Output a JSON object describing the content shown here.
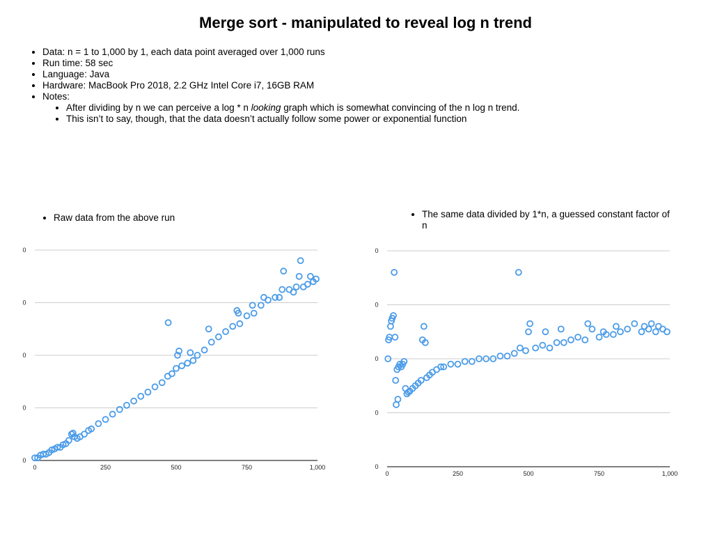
{
  "slide": {
    "title": "Merge sort - manipulated to reveal log n trend",
    "bullets": [
      "Data: n = 1 to 1,000 by 1, each data point averaged over 1,000 runs",
      "Run time: 58 sec",
      "Language: Java",
      "Hardware: MacBook Pro 2018, 2.2 GHz Intel Core i7, 16GB RAM",
      "Notes:"
    ],
    "sub_bullets": [
      {
        "before": "After dividing by n we can perceive a log * n ",
        "em": "looking",
        "after": " graph which is somewhat convincing of the n log n trend."
      },
      {
        "before": "This isn’t to say, though, that the data doesn’t actually follow some power or exponential function",
        "em": "",
        "after": ""
      }
    ],
    "left_note": "Raw data from the above run",
    "right_note": "The same data divided by 1*n, a guessed constant factor of n"
  },
  "colors": {
    "point": "#4a9be8",
    "grid": "#cccccc",
    "axis": "#333333"
  },
  "chart_data": [
    {
      "type": "scatter",
      "title": "",
      "xlabel": "",
      "ylabel": "",
      "xlim": [
        0,
        1000
      ],
      "ylim": [
        0,
        4
      ],
      "x_ticks": [
        "0",
        "250",
        "500",
        "750",
        "1,000"
      ],
      "y_ticks": [
        "0",
        "0",
        "0",
        "0",
        "0"
      ],
      "grid": true,
      "trend": "approximately linear (n log n), rising from 0 to about 3.5 at n = 1,000",
      "points": [
        [
          0,
          0.05
        ],
        [
          10,
          0.05
        ],
        [
          20,
          0.1
        ],
        [
          30,
          0.12
        ],
        [
          40,
          0.12
        ],
        [
          50,
          0.15
        ],
        [
          60,
          0.2
        ],
        [
          70,
          0.22
        ],
        [
          80,
          0.25
        ],
        [
          90,
          0.25
        ],
        [
          100,
          0.3
        ],
        [
          110,
          0.32
        ],
        [
          120,
          0.38
        ],
        [
          130,
          0.5
        ],
        [
          135,
          0.52
        ],
        [
          140,
          0.45
        ],
        [
          150,
          0.42
        ],
        [
          160,
          0.45
        ],
        [
          175,
          0.5
        ],
        [
          190,
          0.57
        ],
        [
          200,
          0.6
        ],
        [
          225,
          0.7
        ],
        [
          250,
          0.78
        ],
        [
          275,
          0.88
        ],
        [
          300,
          0.97
        ],
        [
          325,
          1.05
        ],
        [
          350,
          1.13
        ],
        [
          375,
          1.22
        ],
        [
          400,
          1.3
        ],
        [
          425,
          1.4
        ],
        [
          450,
          1.48
        ],
        [
          470,
          1.6
        ],
        [
          472,
          2.62
        ],
        [
          485,
          1.65
        ],
        [
          500,
          1.75
        ],
        [
          505,
          2.0
        ],
        [
          510,
          2.08
        ],
        [
          520,
          1.8
        ],
        [
          540,
          1.85
        ],
        [
          550,
          2.05
        ],
        [
          560,
          1.9
        ],
        [
          575,
          2.0
        ],
        [
          600,
          2.1
        ],
        [
          615,
          2.5
        ],
        [
          625,
          2.25
        ],
        [
          650,
          2.35
        ],
        [
          675,
          2.45
        ],
        [
          700,
          2.55
        ],
        [
          715,
          2.85
        ],
        [
          720,
          2.8
        ],
        [
          725,
          2.6
        ],
        [
          750,
          2.75
        ],
        [
          770,
          2.95
        ],
        [
          775,
          2.8
        ],
        [
          800,
          2.95
        ],
        [
          810,
          3.1
        ],
        [
          825,
          3.05
        ],
        [
          850,
          3.1
        ],
        [
          865,
          3.1
        ],
        [
          875,
          3.25
        ],
        [
          880,
          3.6
        ],
        [
          900,
          3.25
        ],
        [
          915,
          3.2
        ],
        [
          925,
          3.3
        ],
        [
          935,
          3.5
        ],
        [
          940,
          3.8
        ],
        [
          950,
          3.3
        ],
        [
          965,
          3.35
        ],
        [
          975,
          3.5
        ],
        [
          985,
          3.4
        ],
        [
          995,
          3.45
        ]
      ]
    },
    {
      "type": "scatter",
      "title": "",
      "xlabel": "",
      "ylabel": "",
      "xlim": [
        0,
        1000
      ],
      "ylim": [
        0,
        4
      ],
      "x_ticks": [
        "0",
        "250",
        "500",
        "750",
        "1,000"
      ],
      "y_ticks": [
        "0",
        "0",
        "0",
        "0",
        "0"
      ],
      "grid": true,
      "trend": "rises quickly then levels off (log n shape), with a noisy cluster for small n",
      "points": [
        [
          3,
          2.0
        ],
        [
          5,
          2.35
        ],
        [
          8,
          2.4
        ],
        [
          12,
          2.6
        ],
        [
          15,
          2.7
        ],
        [
          18,
          2.75
        ],
        [
          22,
          2.8
        ],
        [
          25,
          3.6
        ],
        [
          28,
          2.4
        ],
        [
          30,
          1.6
        ],
        [
          32,
          1.15
        ],
        [
          35,
          1.8
        ],
        [
          38,
          1.25
        ],
        [
          40,
          1.85
        ],
        [
          45,
          1.9
        ],
        [
          50,
          1.85
        ],
        [
          55,
          1.9
        ],
        [
          60,
          1.95
        ],
        [
          65,
          1.45
        ],
        [
          70,
          1.35
        ],
        [
          75,
          1.38
        ],
        [
          80,
          1.4
        ],
        [
          90,
          1.45
        ],
        [
          100,
          1.5
        ],
        [
          110,
          1.55
        ],
        [
          120,
          1.6
        ],
        [
          125,
          2.35
        ],
        [
          130,
          2.6
        ],
        [
          135,
          2.3
        ],
        [
          140,
          1.65
        ],
        [
          150,
          1.7
        ],
        [
          160,
          1.75
        ],
        [
          175,
          1.8
        ],
        [
          190,
          1.85
        ],
        [
          200,
          1.85
        ],
        [
          225,
          1.9
        ],
        [
          250,
          1.9
        ],
        [
          275,
          1.95
        ],
        [
          300,
          1.95
        ],
        [
          325,
          2.0
        ],
        [
          350,
          2.0
        ],
        [
          375,
          2.0
        ],
        [
          400,
          2.05
        ],
        [
          425,
          2.05
        ],
        [
          450,
          2.1
        ],
        [
          465,
          3.6
        ],
        [
          470,
          2.2
        ],
        [
          490,
          2.15
        ],
        [
          500,
          2.5
        ],
        [
          505,
          2.65
        ],
        [
          525,
          2.2
        ],
        [
          550,
          2.25
        ],
        [
          560,
          2.5
        ],
        [
          575,
          2.2
        ],
        [
          600,
          2.3
        ],
        [
          615,
          2.55
        ],
        [
          625,
          2.3
        ],
        [
          650,
          2.35
        ],
        [
          675,
          2.4
        ],
        [
          700,
          2.35
        ],
        [
          710,
          2.65
        ],
        [
          725,
          2.55
        ],
        [
          750,
          2.4
        ],
        [
          765,
          2.5
        ],
        [
          775,
          2.45
        ],
        [
          800,
          2.45
        ],
        [
          810,
          2.6
        ],
        [
          825,
          2.5
        ],
        [
          850,
          2.55
        ],
        [
          875,
          2.65
        ],
        [
          900,
          2.5
        ],
        [
          910,
          2.6
        ],
        [
          925,
          2.55
        ],
        [
          935,
          2.65
        ],
        [
          950,
          2.5
        ],
        [
          960,
          2.6
        ],
        [
          975,
          2.55
        ],
        [
          990,
          2.5
        ]
      ]
    }
  ]
}
